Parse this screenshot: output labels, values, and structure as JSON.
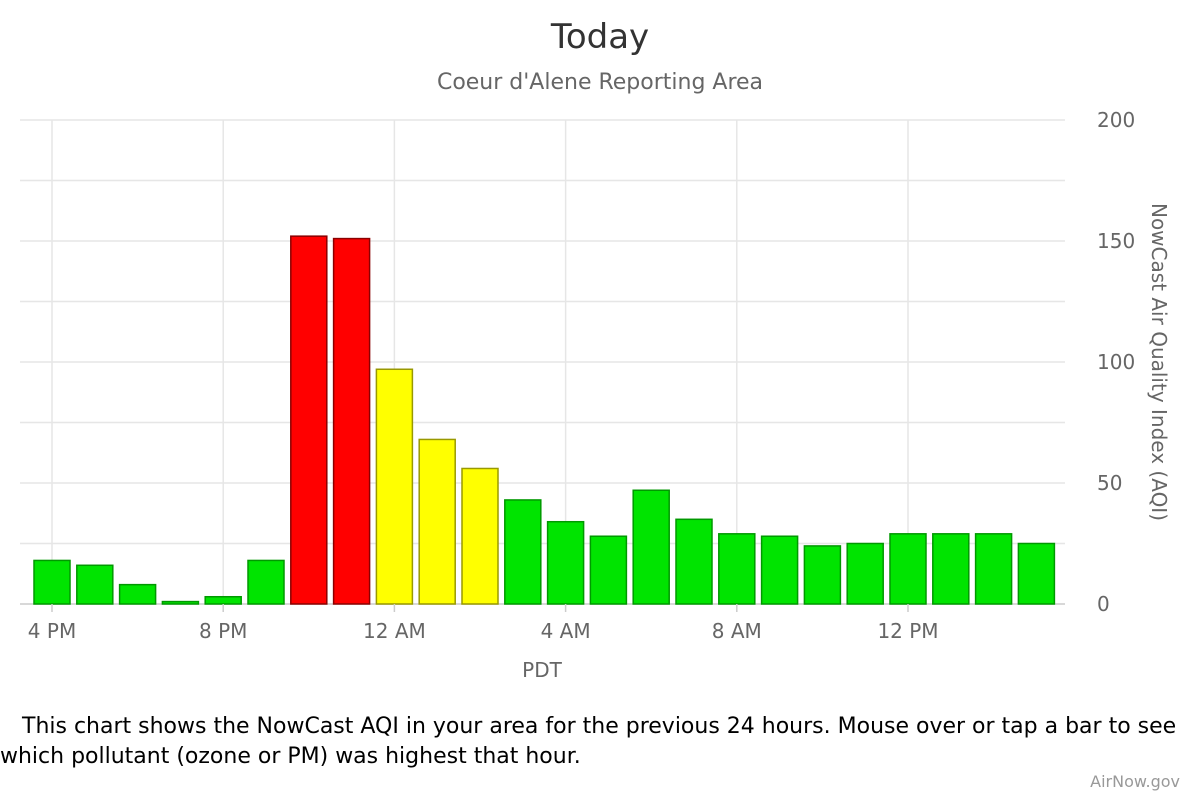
{
  "chart_data": {
    "type": "bar",
    "title": "Today",
    "subtitle": "Coeur d'Alene Reporting Area",
    "xlabel": "PDT",
    "ylabel": "NowCast Air Quality Index (AQI)",
    "ylim": [
      0,
      200
    ],
    "y_ticks": [
      "0",
      "50",
      "100",
      "150",
      "200"
    ],
    "x_tick_labels": [
      "4 PM",
      "8 PM",
      "12 AM",
      "4 AM",
      "8 AM",
      "12 PM"
    ],
    "x_tick_hours": [
      0,
      4,
      8,
      12,
      16,
      20
    ],
    "y_axis_position": "right",
    "grid": true,
    "values": [
      18,
      16,
      8,
      1,
      3,
      18,
      152,
      151,
      97,
      68,
      56,
      43,
      34,
      28,
      47,
      35,
      29,
      28,
      24,
      25,
      29,
      29,
      29,
      25
    ],
    "category_colors": {
      "good": "#00e400",
      "moderate": "#ffff00",
      "unhealthy_sensitive": "#ff7e00",
      "unhealthy": "#ff0000"
    }
  },
  "caption": {
    "line1": "This chart shows the NowCast AQI in your area for the previous 24 hours. Mouse over or tap a bar to see",
    "line2": "which pollutant (ozone or PM) was highest that hour."
  },
  "credit": "AirNow.gov"
}
